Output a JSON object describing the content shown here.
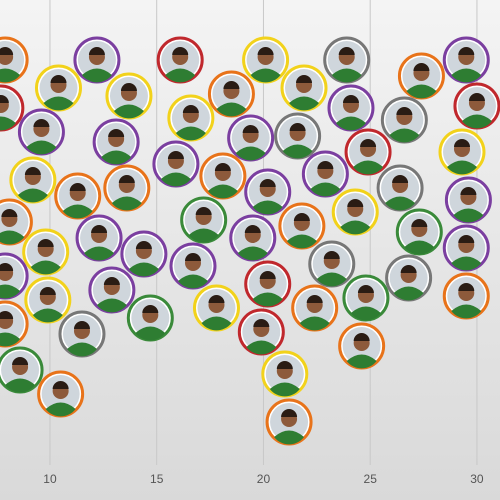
{
  "chart_data": {
    "type": "beeswarm",
    "x": [
      12.2,
      20.1,
      23.9,
      10.4,
      13.7,
      16.1,
      18.5,
      21.9,
      24.1,
      29.5,
      7.9,
      9.6,
      13.1,
      16.6,
      19.4,
      21.6,
      24.9,
      27.4,
      30.0,
      7.7,
      9.2,
      11.3,
      13.6,
      15.9,
      18.1,
      20.2,
      22.9,
      26.4,
      29.3,
      8.1,
      9.8,
      12.3,
      14.4,
      17.2,
      19.5,
      21.8,
      24.3,
      26.6,
      29.6,
      7.9,
      9.9,
      12.9,
      16.7,
      20.2,
      23.2,
      29.5,
      7.9,
      11.5,
      14.7,
      17.8,
      19.9,
      22.4,
      24.8,
      27.3,
      8.6,
      29.5,
      10.5,
      21.0,
      24.6,
      26.8,
      21.2
    ],
    "colors": [
      "#7b3fa0",
      "#f2d21b",
      "#777777",
      "#f2d21b",
      "#f2d21b",
      "#c0282d",
      "#e8731a",
      "#f2d21b",
      "#7b3fa0",
      "#7b3fa0",
      "#e8731a",
      "#7b3fa0",
      "#7b3fa0",
      "#f2d21b",
      "#7b3fa0",
      "#777777",
      "#c0282d",
      "#e8731a",
      "#c0282d",
      "#c0282d",
      "#f2d21b",
      "#e8731a",
      "#e8731a",
      "#7b3fa0",
      "#e8731a",
      "#7b3fa0",
      "#7b3fa0",
      "#777777",
      "#f2d21b",
      "#e8731a",
      "#f2d21b",
      "#7b3fa0",
      "#7b3fa0",
      "#3a8a3a",
      "#7b3fa0",
      "#e8731a",
      "#f2d21b",
      "#777777",
      "#7b3fa0",
      "#7b3fa0",
      "#f2d21b",
      "#7b3fa0",
      "#7b3fa0",
      "#c0282d",
      "#777777",
      "#7b3fa0",
      "#e8731a",
      "#777777",
      "#3a8a3a",
      "#f2d21b",
      "#c0282d",
      "#e8731a",
      "#3a8a3a",
      "#3a8a3a",
      "#3a8a3a",
      "#e8731a",
      "#e8731a",
      "#f2d21b",
      "#e8731a",
      "#777777",
      "#e8731a"
    ],
    "xlim": [
      7.66,
      31.08
    ],
    "xticks": [
      10,
      15,
      20,
      25,
      30
    ],
    "grid": true
  }
}
